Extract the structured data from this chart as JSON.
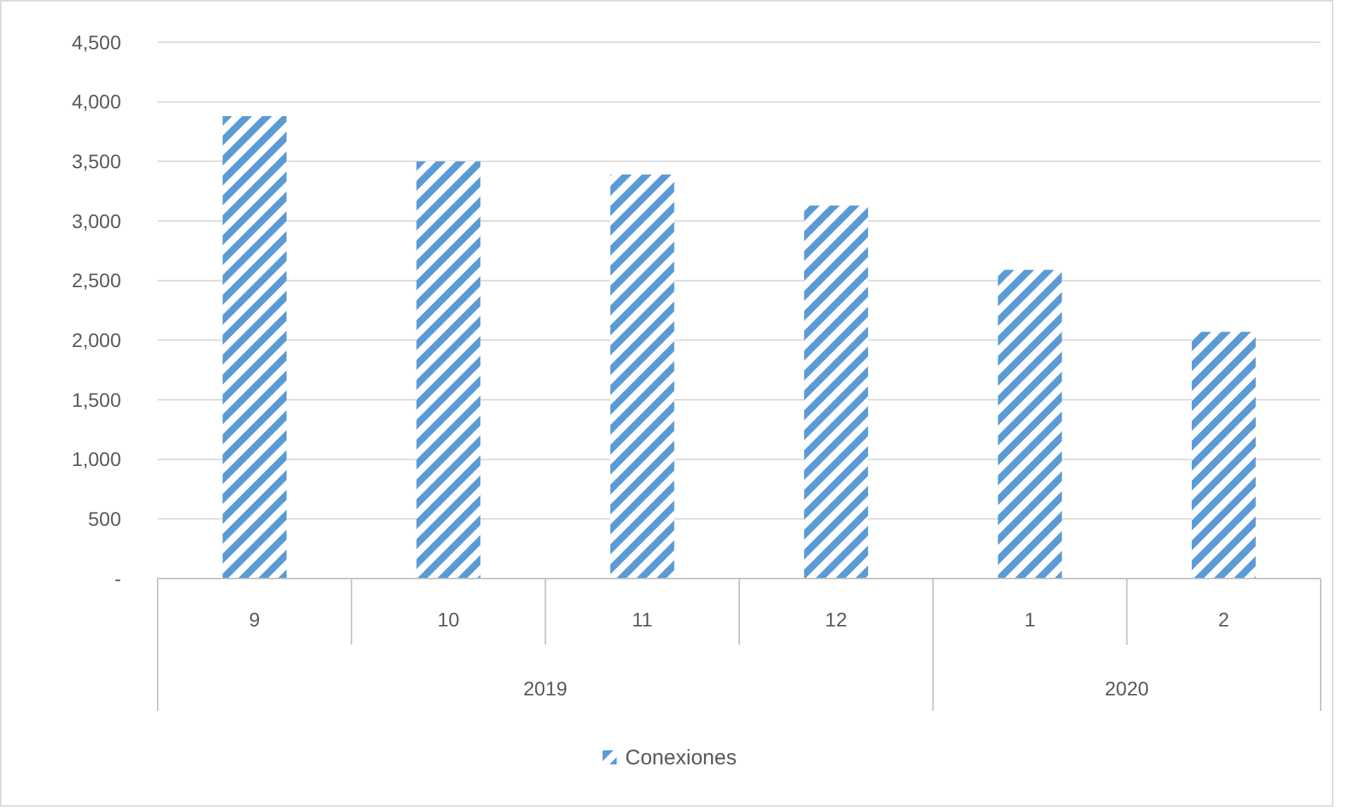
{
  "chart_data": {
    "type": "bar",
    "categories": [
      "9",
      "10",
      "11",
      "12",
      "1",
      "2"
    ],
    "series": [
      {
        "name": "Conexiones",
        "color": "#5b9bd5",
        "values": [
          3880,
          3500,
          3390,
          3130,
          2590,
          2070
        ]
      }
    ],
    "ylim": [
      0,
      4500
    ],
    "yticks": [
      {
        "value": 0,
        "label": "-"
      },
      {
        "value": 500,
        "label": "500"
      },
      {
        "value": 1000,
        "label": "1,000"
      },
      {
        "value": 1500,
        "label": "1,500"
      },
      {
        "value": 2000,
        "label": "2,000"
      },
      {
        "value": 2500,
        "label": "2,500"
      },
      {
        "value": 3000,
        "label": "3,000"
      },
      {
        "value": 3500,
        "label": "3,500"
      },
      {
        "value": 4000,
        "label": "4,000"
      },
      {
        "value": 4500,
        "label": "4,500"
      }
    ],
    "annotations": [
      "2019",
      "2020"
    ],
    "grid": "y",
    "legend": "bottom"
  }
}
